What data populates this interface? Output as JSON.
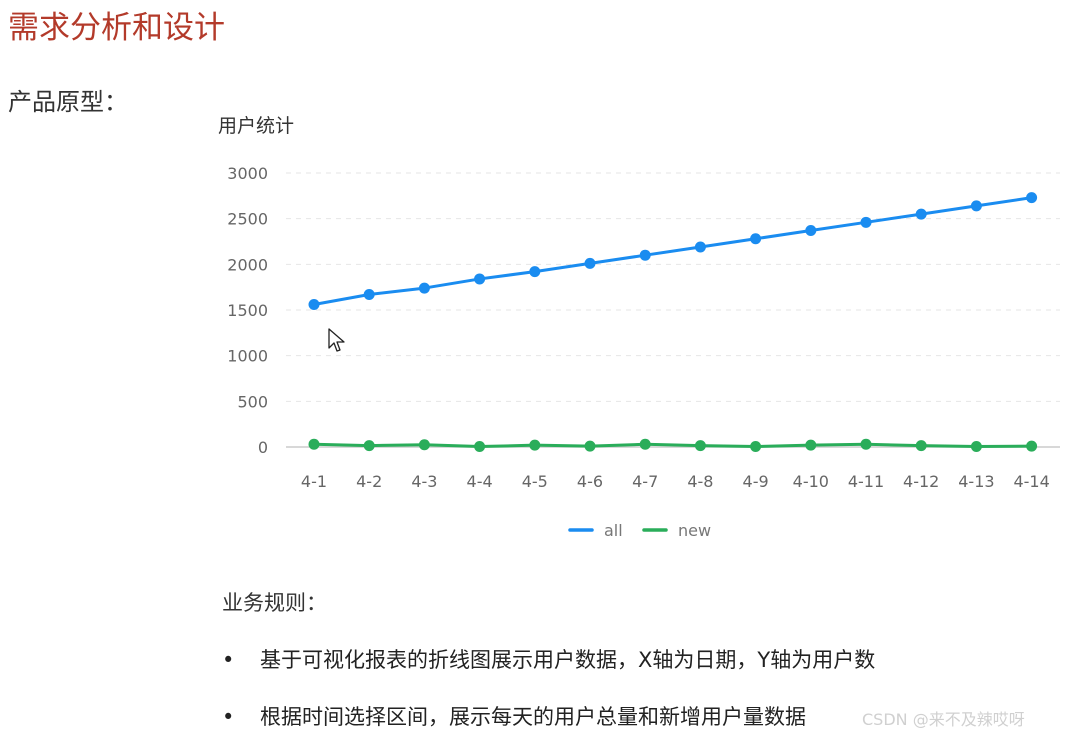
{
  "page": {
    "title": "需求分析和设计",
    "prototype_label": "产品原型："
  },
  "chart_data": {
    "type": "line",
    "title": "用户统计",
    "categories": [
      "4-1",
      "4-2",
      "4-3",
      "4-4",
      "4-5",
      "4-6",
      "4-7",
      "4-8",
      "4-9",
      "4-10",
      "4-11",
      "4-12",
      "4-13",
      "4-14"
    ],
    "series": [
      {
        "name": "all",
        "color": "#1a8cf0",
        "values": [
          1560,
          1670,
          1740,
          1840,
          1920,
          2010,
          2100,
          2190,
          2280,
          2370,
          2460,
          2550,
          2640,
          2730
        ]
      },
      {
        "name": "new",
        "color": "#2aad5a",
        "values": [
          30,
          15,
          25,
          5,
          20,
          10,
          30,
          15,
          5,
          20,
          30,
          15,
          5,
          10
        ]
      }
    ],
    "yticks": [
      0,
      500,
      1000,
      1500,
      2000,
      2500,
      3000
    ],
    "ylim": [
      0,
      3000
    ],
    "grid": true,
    "legend_position": "bottom-center"
  },
  "rules": {
    "heading": "业务规则：",
    "bullet": "•",
    "items": [
      "基于可视化报表的折线图展示用户数据，X轴为日期，Y轴为用户数",
      "根据时间选择区间，展示每天的用户总量和新增用户量数据"
    ]
  },
  "watermark": "CSDN @来不及辣哎呀"
}
